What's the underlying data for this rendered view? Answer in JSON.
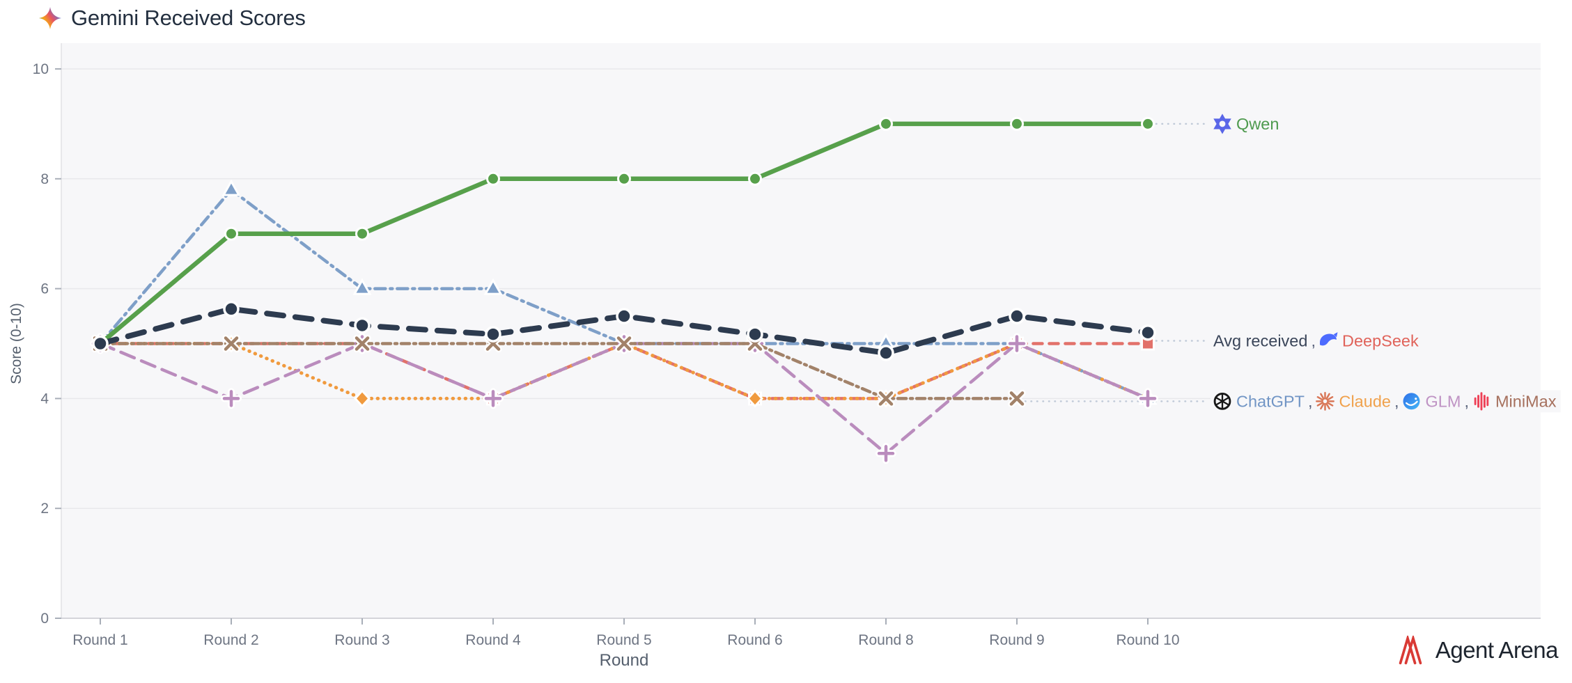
{
  "title": {
    "text": "Gemini Received Scores"
  },
  "footer": {
    "brand": "Agent Arena"
  },
  "chart_data": {
    "type": "line",
    "title": "Gemini Received Scores",
    "xlabel": "Round",
    "ylabel": "Score (0-10)",
    "ylim": [
      0,
      10
    ],
    "yticks": [
      0,
      2,
      4,
      6,
      8,
      10
    ],
    "grid": true,
    "legend_position": "right-annotations",
    "categories": [
      "Round 1",
      "Round 2",
      "Round 3",
      "Round 4",
      "Round 5",
      "Round 6",
      "Round 8",
      "Round 9",
      "Round 10"
    ],
    "series": [
      {
        "name": "ChatGPT",
        "color": "#7e9fc8",
        "dash": "dashdot",
        "marker": "triangle",
        "width": 4.5,
        "values": [
          5,
          7.8,
          6,
          6,
          5,
          5,
          5,
          5,
          4
        ]
      },
      {
        "name": "DeepSeek",
        "color": "#e2716a",
        "dash": "dash",
        "marker": "square",
        "width": 4.5,
        "values": [
          5,
          5,
          5,
          4,
          5,
          4,
          4,
          5,
          5
        ]
      },
      {
        "name": "Claude",
        "color": "#f09a3e",
        "dash": "dot",
        "marker": "diamond",
        "width": 5,
        "values": [
          5,
          5,
          4,
          4,
          5,
          4,
          4,
          5,
          4
        ]
      },
      {
        "name": "GLM",
        "color": "#ba8cbd",
        "dash": "longdash",
        "marker": "plus",
        "width": 4.5,
        "values": [
          5,
          4,
          5,
          4,
          5,
          5,
          3,
          5,
          4
        ]
      },
      {
        "name": "MiniMax",
        "color": "#a28269",
        "dash": "dashdot2",
        "marker": "x",
        "width": 4.5,
        "values": [
          5,
          5,
          5,
          5,
          5,
          5,
          4,
          4,
          null
        ]
      },
      {
        "name": "Qwen",
        "color": "#57a04b",
        "dash": "solid",
        "marker": "circle",
        "width": 6.5,
        "values": [
          5,
          7,
          7,
          8,
          8,
          8,
          9,
          9,
          9
        ]
      },
      {
        "name": "Avg received",
        "color": "#2d3b4f",
        "dash": "avgdash",
        "marker": "circle-lg",
        "width": 8,
        "values": [
          5,
          5.63,
          5.33,
          5.17,
          5.5,
          5.17,
          4.83,
          5.5,
          5.2
        ]
      }
    ],
    "annotations": [
      {
        "y": 9,
        "leader_from_x": 1660,
        "segments": [
          {
            "icon": "qwen-icon"
          },
          {
            "text": "Qwen",
            "color": "#4e9a4e"
          }
        ]
      },
      {
        "y": 5.05,
        "leader_from_x": 1660,
        "segments": [
          {
            "text": "Avg received",
            "color": "#3a4559"
          },
          {
            "text": " , ",
            "color": "#57617a"
          },
          {
            "icon": "deepseek-icon"
          },
          {
            "text": "DeepSeek",
            "color": "#e0635a"
          }
        ]
      },
      {
        "y": 3.95,
        "leader_from_x": 1472,
        "segments": [
          {
            "icon": "chatgpt-icon"
          },
          {
            "text": "ChatGPT",
            "color": "#7195c5"
          },
          {
            "text": " , ",
            "color": "#57617a"
          },
          {
            "icon": "claude-icon"
          },
          {
            "text": "Claude",
            "color": "#f0a14c"
          },
          {
            "text": " , ",
            "color": "#57617a"
          },
          {
            "icon": "glm-icon"
          },
          {
            "text": "GLM",
            "color": "#bf93c4"
          },
          {
            "text": " , ",
            "color": "#57617a"
          },
          {
            "icon": "minimax-icon"
          },
          {
            "text": "MiniMax",
            "color": "#a6705d"
          }
        ]
      }
    ],
    "colors": {
      "plot_bg": "#f7f7f9",
      "grid": "#e8e8ec",
      "axis_line": "#d5d5da",
      "left_border": "#e2e2e6",
      "tick_text": "#6e7583",
      "axis_title_text": "#555f6d",
      "leader": "#c0cad8"
    }
  }
}
